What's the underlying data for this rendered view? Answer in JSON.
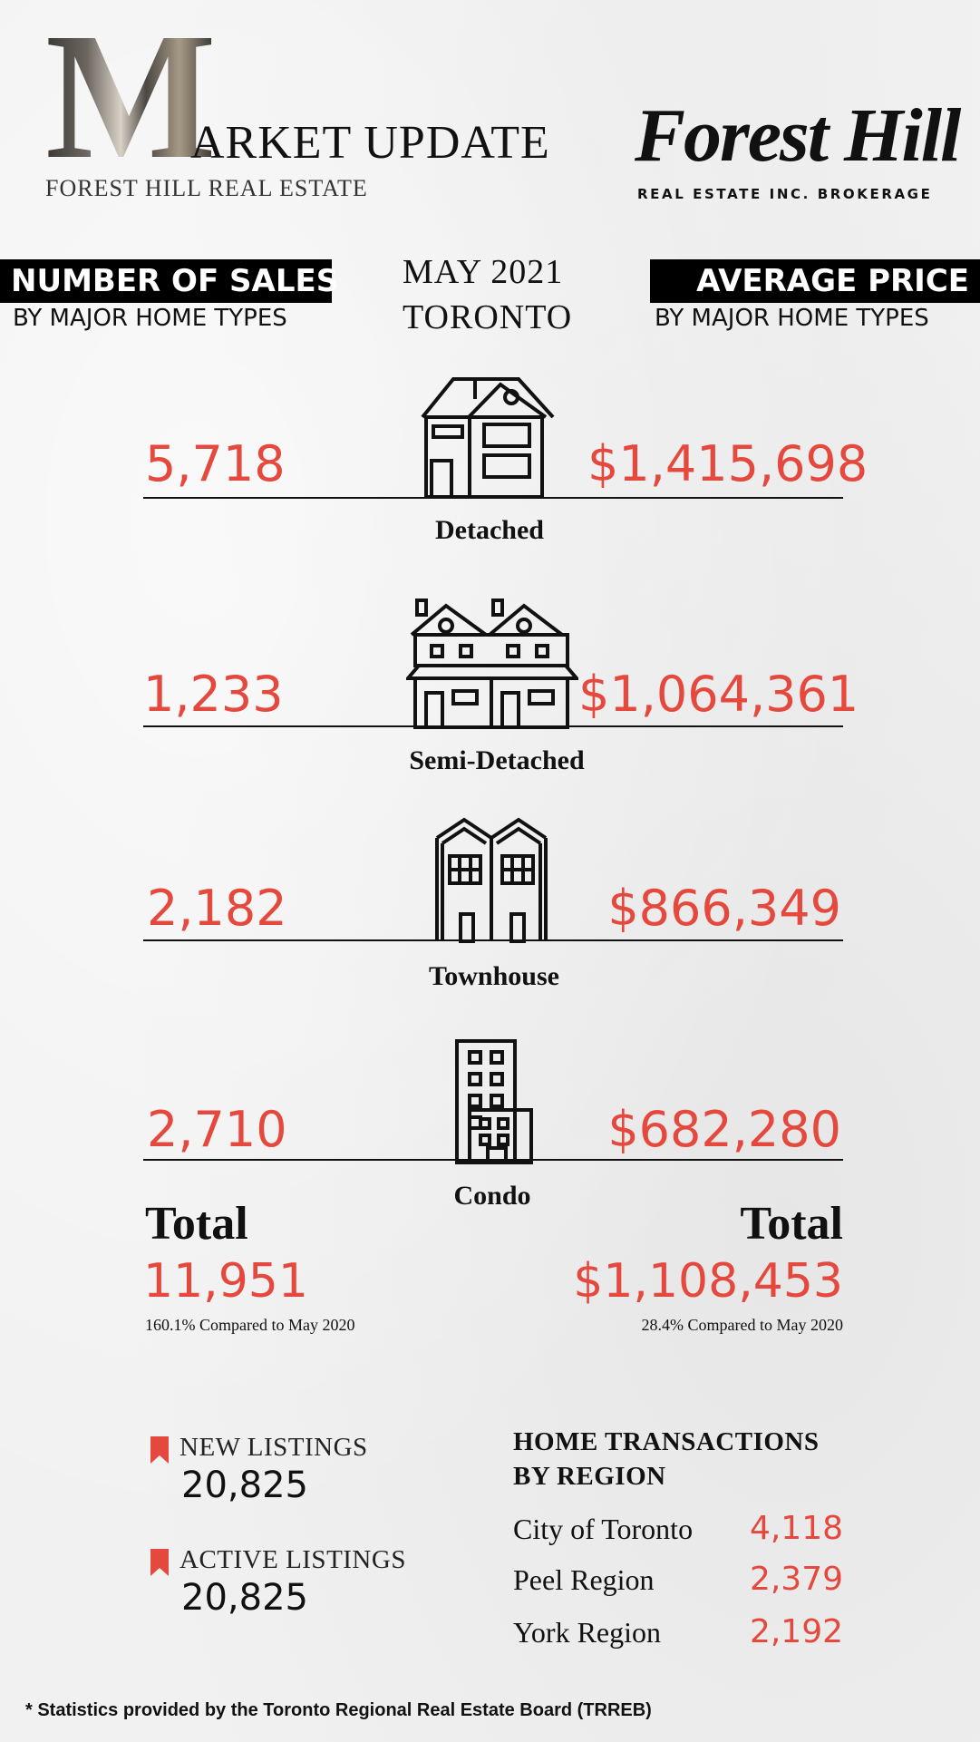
{
  "header": {
    "big_letter": "M",
    "title_rest": "ARKET UPDATE",
    "subtitle": "FOREST HILL REAL ESTATE",
    "brand_name": "Forest Hill",
    "brand_tagline": "REAL ESTATE INC. BROKERAGE"
  },
  "left_head": {
    "title": "NUMBER OF SALES",
    "sub": "BY MAJOR HOME TYPES"
  },
  "center_head": {
    "line1": "MAY 2021",
    "line2": "TORONTO"
  },
  "right_head": {
    "title": "AVERAGE PRICE",
    "sub": "BY MAJOR HOME TYPES"
  },
  "home_types": [
    {
      "label": "Detached",
      "sales": "5,718",
      "price": "$1,415,698",
      "icon": "detached-house-icon"
    },
    {
      "label": "Semi-Detached",
      "sales": "1,233",
      "price": "$1,064,361",
      "icon": "semi-detached-house-icon"
    },
    {
      "label": "Townhouse",
      "sales": "2,182",
      "price": "$866,349",
      "icon": "townhouse-icon"
    },
    {
      "label": "Condo",
      "sales": "2,710",
      "price": "$682,280",
      "icon": "condo-building-icon"
    }
  ],
  "totals": {
    "left_word": "Total",
    "left_value": "11,951",
    "left_compare": "160.1% Compared to May 2020",
    "right_word": "Total",
    "right_value": "$1,108,453",
    "right_compare": "28.4% Compared to May 2020"
  },
  "listings": [
    {
      "title": "NEW LISTINGS",
      "value": "20,825"
    },
    {
      "title": "ACTIVE LISTINGS",
      "value": "20,825"
    }
  ],
  "regions": {
    "title_line1": "HOME TRANSACTIONS",
    "title_line2": "BY REGION",
    "items": [
      {
        "name": "City of Toronto",
        "value": "4,118"
      },
      {
        "name": "Peel Region",
        "value": "2,379"
      },
      {
        "name": "York Region",
        "value": "2,192"
      }
    ]
  },
  "footnote": "* Statistics provided by the Toronto Regional Real Estate Board (TRREB)",
  "colors": {
    "accent": "#e5483d",
    "text": "#111111",
    "background": "#f1f1f1"
  }
}
